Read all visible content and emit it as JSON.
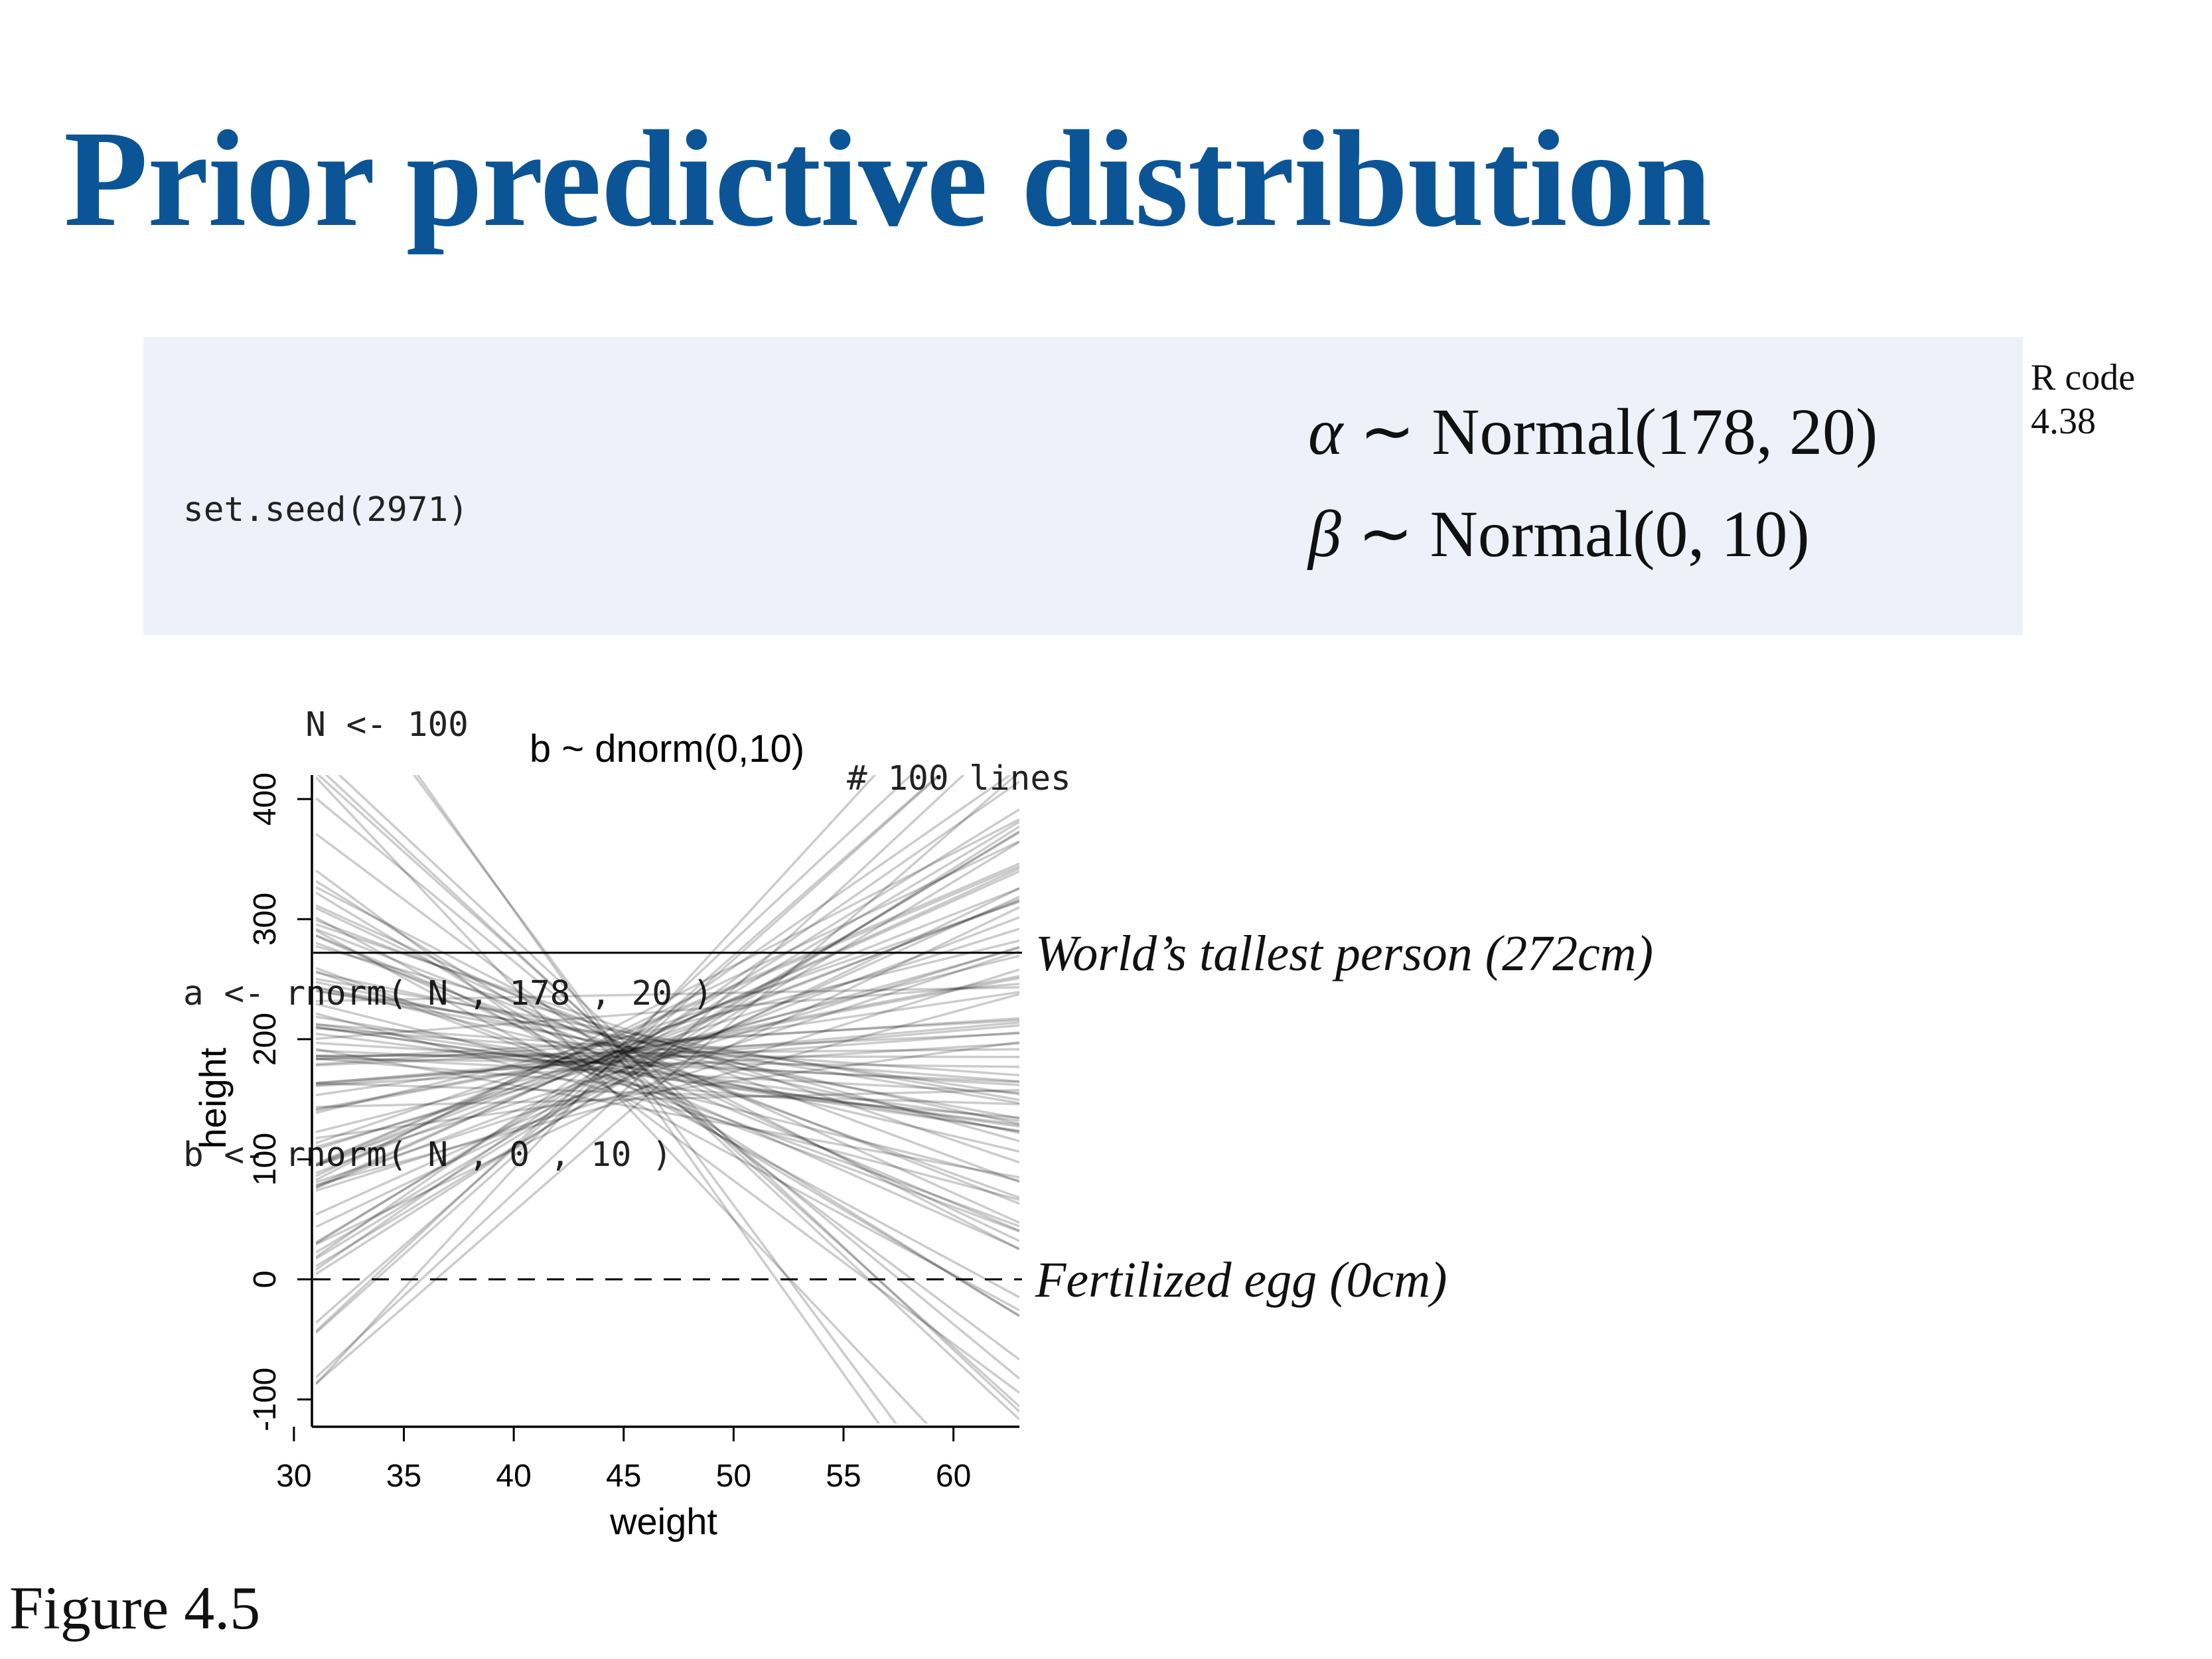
{
  "slide": {
    "title": "Prior predictive distribution",
    "figure_label": "Figure 4.5",
    "rcode_label_line1": "R code",
    "rcode_label_line2": "4.38"
  },
  "code": {
    "lines": [
      "set.seed(2971)",
      "N <- 100",
      "a <- rnorm( N , 178 , 20 )",
      "b <- rnorm( N , 0 , 10 )"
    ],
    "comment": "# 100 lines"
  },
  "math": {
    "alpha_sym": "α",
    "alpha_rest": " ∼ Normal(178, 20)",
    "beta_sym": "β",
    "beta_rest": " ∼ Normal(0, 10)"
  },
  "chart_data": {
    "type": "line",
    "title": "b ~ dnorm(0,10)",
    "xlabel": "weight",
    "ylabel": "height",
    "xlim": [
      31,
      63
    ],
    "ylim": [
      -120,
      420
    ],
    "x_ticks": [
      30,
      35,
      40,
      45,
      50,
      55,
      60
    ],
    "y_ticks": [
      -100,
      0,
      100,
      200,
      300,
      400
    ],
    "grid": false,
    "line_color": "#000000",
    "line_opacity": 0.2,
    "reference_lines": [
      {
        "y": 272,
        "style": "solid",
        "label": "World’s tallest person (272cm)"
      },
      {
        "y": 0,
        "style": "dashed",
        "label": "Fertilized egg (0cm)"
      }
    ],
    "x_center": 44.99,
    "seed": 2971,
    "n_lines": 100,
    "a_prior": {
      "mean": 178,
      "sd": 20
    },
    "b_prior": {
      "mean": 0,
      "sd": 10
    }
  }
}
